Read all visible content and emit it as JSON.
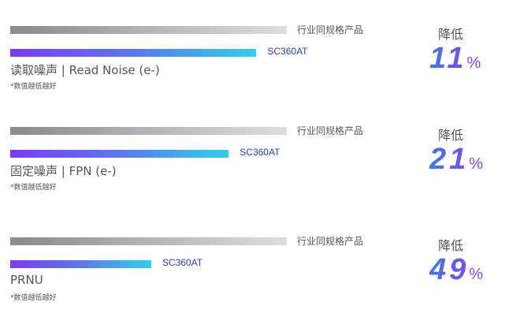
{
  "chart_data": {
    "type": "bar",
    "orientation": "horizontal",
    "note": "*数值越低越好",
    "reduction_label": "降低",
    "groups": [
      {
        "metric": "读取噪声 | Read Noise (e-)",
        "series": [
          {
            "name": "行业同规格产品",
            "value": 100
          },
          {
            "name": "SC360AT",
            "value": 89
          }
        ],
        "reduction": "11",
        "unit": "%"
      },
      {
        "metric": "固定噪声 | FPN (e-)",
        "series": [
          {
            "name": "行业同规格产品",
            "value": 100
          },
          {
            "name": "SC360AT",
            "value": 79
          }
        ],
        "reduction": "21",
        "unit": "%"
      },
      {
        "metric": "PRNU",
        "series": [
          {
            "name": "行业同规格产品",
            "value": 100
          },
          {
            "name": "SC360AT",
            "value": 51
          }
        ],
        "reduction": "49",
        "unit": "%"
      }
    ],
    "colors": {
      "industry": [
        "#8a8a8a",
        "#dedede"
      ],
      "sc360at": [
        "#7b3cf0",
        "#2fd0ec"
      ],
      "label_sc": "#2b3fb8"
    }
  }
}
